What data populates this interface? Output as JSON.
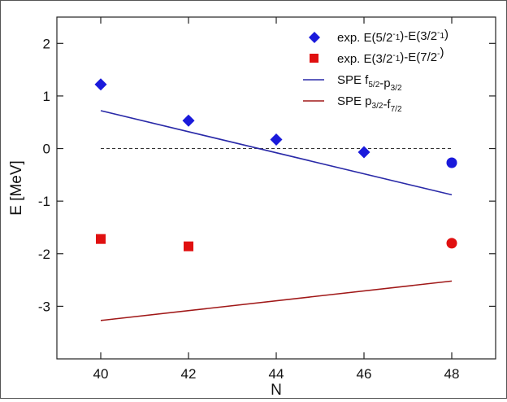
{
  "chart_data": {
    "type": "scatter",
    "xlabel": "N",
    "ylabel": "E [MeV]",
    "xlim": [
      39,
      49
    ],
    "ylim": [
      -4,
      2.5
    ],
    "x_ticks": [
      40,
      42,
      44,
      46,
      48
    ],
    "y_ticks": [
      2,
      1,
      0,
      -1,
      -2,
      -3
    ],
    "x_tick_labels": [
      "40",
      "42",
      "44",
      "46",
      "48"
    ],
    "y_tick_labels": [
      "2",
      "1",
      "0",
      "-1",
      "-2",
      "-3"
    ],
    "reference_line": {
      "y": 0,
      "x_range": [
        40,
        48
      ],
      "style": "dashed"
    },
    "legend_position": "top-right",
    "series": [
      {
        "key": "exp_a",
        "name": "exp. E(5/2⁻₁)-E(3/2⁻₁)",
        "legend_parts": [
          {
            "t": "exp. E(5/2",
            "s": "n"
          },
          {
            "t": "-",
            "s": "sup"
          },
          {
            "t": "1",
            "s": "sub"
          },
          {
            "t": ")-E(3/2",
            "s": "n"
          },
          {
            "t": "-",
            "s": "sup"
          },
          {
            "t": "1",
            "s": "sub"
          },
          {
            "t": ")",
            "s": "n"
          }
        ],
        "kind": "points",
        "color": "#1a1adb",
        "x": [
          40,
          42,
          44,
          46,
          48
        ],
        "y": [
          1.22,
          0.53,
          0.17,
          -0.07,
          -0.27
        ],
        "marker": [
          "diamond",
          "diamond",
          "diamond",
          "diamond",
          "circle"
        ]
      },
      {
        "key": "exp_b",
        "name": "exp. E(3/2⁻₁)-E(7/2⁻)",
        "legend_parts": [
          {
            "t": "exp. E(3/2",
            "s": "n"
          },
          {
            "t": "-",
            "s": "sup"
          },
          {
            "t": "1",
            "s": "sub"
          },
          {
            "t": ")-E(7/2",
            "s": "n"
          },
          {
            "t": "-",
            "s": "sup"
          },
          {
            "t": ")",
            "s": "n"
          }
        ],
        "kind": "points",
        "color": "#e01010",
        "x": [
          40,
          42,
          48
        ],
        "y": [
          -1.72,
          -1.86,
          -1.8
        ],
        "marker": [
          "square",
          "square",
          "circle"
        ]
      },
      {
        "key": "spe_a",
        "name": "SPE f5/2-p3/2",
        "legend_parts": [
          {
            "t": "SPE f",
            "s": "n"
          },
          {
            "t": "5/2",
            "s": "sub"
          },
          {
            "t": "-p",
            "s": "n"
          },
          {
            "t": "3/2",
            "s": "sub"
          }
        ],
        "kind": "line",
        "color": "#2a2aa8",
        "x": [
          40,
          48
        ],
        "y": [
          0.72,
          -0.88
        ]
      },
      {
        "key": "spe_b",
        "name": "SPE p3/2-f7/2",
        "legend_parts": [
          {
            "t": "SPE p",
            "s": "n"
          },
          {
            "t": "3/2",
            "s": "sub"
          },
          {
            "t": "-f",
            "s": "n"
          },
          {
            "t": "7/2",
            "s": "sub"
          }
        ],
        "kind": "line",
        "color": "#a01818",
        "x": [
          40,
          48
        ],
        "y": [
          -3.27,
          -2.52
        ]
      }
    ]
  }
}
